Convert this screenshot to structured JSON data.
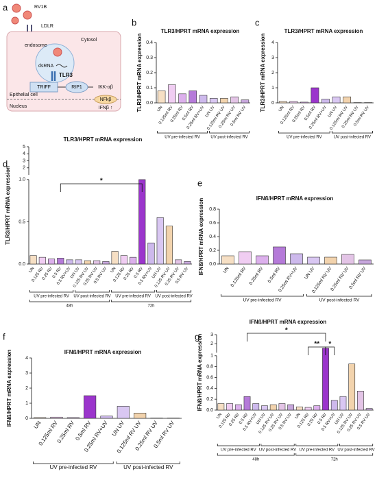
{
  "diagram": {
    "panel": "a",
    "virus": "RV1B",
    "receptor": "LDLR",
    "cytosol": "Cytosol",
    "endosome": "endosome",
    "dsrna": "dsRNA",
    "tlr3": "TLR3",
    "triff": "TRIFF",
    "rip1": "RIP1",
    "ikk": "IKK-αβ",
    "nfkb": "NFkβ",
    "ifnb": "IFNβ ↑",
    "cell": "Epithelial cell",
    "nucleus": "Nucleus"
  },
  "chart_data": [
    {
      "type": "bar",
      "panel": "b",
      "title": "TLR3/HPRT mRNA expression",
      "ylabel": "TLR3/HPRT mRNA expression",
      "categories": [
        "UN",
        "0.125ml RV",
        "0.25ml RV",
        "0.5ml RV",
        "0.25ml RV+UV",
        "UN UV",
        "0.125ml RV UV",
        "0.25ml RV UV",
        "0.5ml RV UV"
      ],
      "values": [
        0.08,
        0.12,
        0.06,
        0.08,
        0.05,
        0.03,
        0.03,
        0.04,
        0.02
      ],
      "colors": [
        "#f6dfc4",
        "#f0cdf2",
        "#dcb0ec",
        "#b57ad9",
        "#cdb9ec",
        "#d9c7f2",
        "#f2d3ad",
        "#e3c4e6",
        "#c7a7dc"
      ],
      "groups": [
        "UV pre-infected RV",
        "UV post-infected RV"
      ],
      "ylim": [
        0,
        0.4
      ],
      "yticks": [
        {
          "value": 0,
          "label": "0.0"
        },
        0.1,
        0.2,
        0.3,
        0.4
      ]
    },
    {
      "type": "bar",
      "panel": "c",
      "title": "TLR3/HPRT mRNA expression",
      "ylabel": "TLR3/HPRT mRNA expression",
      "categories": [
        "UN",
        "0.125ml RV",
        "0.25ml RV",
        "0.5ml RV",
        "0.25ml RV+UV",
        "UN UV",
        "0.125ml RV UV",
        "0.25ml RV UV",
        "0.5ml RV UV"
      ],
      "values": [
        0.1,
        0.1,
        0.05,
        1.0,
        0.25,
        0.4,
        0.4,
        0.02,
        0.02
      ],
      "colors": [
        "#f6dfc4",
        "#f0cdf2",
        "#dcb0ec",
        "#9b35cc",
        "#cdb9ec",
        "#d9c7f2",
        "#f2d3ad",
        "#e3c4e6",
        "#c7a7dc"
      ],
      "groups": [
        "UV pre-infected RV",
        "UV post-infected RV"
      ],
      "ylim": [
        0,
        4
      ],
      "yticks": [
        0,
        1,
        2,
        3,
        4
      ]
    },
    {
      "type": "bar",
      "panel": "d",
      "title": "TLR3/HPRT mRNA expression",
      "ylabel": "TLR3/HPRT mRNA expression",
      "categories": [
        "UN",
        "0.125 RV",
        "0.25 RV",
        "0.5 RV",
        "0.5 RV+UV",
        "UN UV",
        "0.125 RV UV",
        "0.25 RV UV",
        "0.5 RV UV",
        "UN",
        "0.125 RV",
        "0.25 RV",
        "0.5 RV",
        "0.5 RV+UV",
        "UN UV",
        "0.125 RV UV",
        "0.25 RV UV",
        "0.5 RV UV"
      ],
      "values": [
        0.1,
        0.08,
        0.06,
        0.07,
        0.05,
        0.05,
        0.04,
        0.04,
        0.03,
        0.15,
        0.1,
        0.08,
        1.0,
        0.25,
        0.55,
        0.45,
        0.05,
        0.03
      ],
      "colors": [
        "#f6dfc4",
        "#f0cdf2",
        "#dcb0ec",
        "#b57ad9",
        "#cdb9ec",
        "#d9c7f2",
        "#f2d3ad",
        "#e3c4e6",
        "#c7a7dc",
        "#f6dfc4",
        "#f0cdf2",
        "#dcb0ec",
        "#9b35cc",
        "#cdb9ec",
        "#d9c7f2",
        "#f2d3ad",
        "#e3c4e6",
        "#c7a7dc"
      ],
      "groups": [
        "UV pre-infected RV",
        "UV post-infected RV",
        "UV pre-infected RV",
        "UV post-infected RV"
      ],
      "periods": [
        "48h",
        "72h"
      ],
      "annotations": [
        "*"
      ],
      "ylim": [
        0,
        5
      ],
      "ybreak": 1,
      "yticks": [
        {
          "value": 0,
          "label": "0.0"
        },
        0.5,
        {
          "value": 1,
          "label": "1.0"
        },
        2,
        3,
        4,
        5
      ]
    },
    {
      "type": "bar",
      "panel": "e",
      "title": "IFNß/HPRT mRNA expression",
      "ylabel": "IFNß/HPRT mRNA expression",
      "categories": [
        "UN",
        "0.125ml RV",
        "0.25ml RV",
        "0.5ml RV",
        "0.25ml RV+UV",
        "UN UV",
        "0.125ml RV UV",
        "0.25ml RV UV",
        "0.5ml RV UV"
      ],
      "values": [
        0.12,
        0.18,
        0.12,
        0.25,
        0.15,
        0.1,
        0.1,
        0.14,
        0.06
      ],
      "colors": [
        "#f6dfc4",
        "#f0cdf2",
        "#dcb0ec",
        "#b57ad9",
        "#cdb9ec",
        "#d9c7f2",
        "#f2d3ad",
        "#e3c4e6",
        "#c7a7dc"
      ],
      "groups": [
        "UV pre-infected RV",
        "UV post-infected RV"
      ],
      "ylim": [
        0,
        0.8
      ],
      "yticks": [
        {
          "value": 0,
          "label": "0.0"
        },
        0.2,
        0.4,
        0.6,
        0.8
      ]
    },
    {
      "type": "bar",
      "panel": "f",
      "title": "IFNß/HPRT mRNA expression",
      "ylabel": "IFNß/HPRT mRNA expression",
      "categories": [
        "UN",
        "0.125ml RV",
        "0.25ml RV",
        "0.5ml RV",
        "0.25ml RV+UV",
        "UN UV",
        "0.125ml RV UV",
        "0.25ml RV UV",
        "0.5ml RV UV"
      ],
      "values": [
        0.05,
        0.08,
        0.05,
        1.5,
        0.15,
        0.8,
        0.35,
        0.02,
        0.02
      ],
      "colors": [
        "#f6dfc4",
        "#f0cdf2",
        "#dcb0ec",
        "#9b35cc",
        "#cdb9ec",
        "#d9c7f2",
        "#f2d3ad",
        "#e3c4e6",
        "#c7a7dc"
      ],
      "groups": [
        "UV pre-infected RV",
        "UV post-infected RV"
      ],
      "ylim": [
        0,
        4
      ],
      "yticks": [
        0,
        1,
        2,
        3,
        4
      ]
    },
    {
      "type": "bar",
      "panel": "g",
      "title": "IFNß/HPRT mRNA expression",
      "ylabel": "IFNß/HPRT mRNA expression",
      "categories": [
        "UN",
        "0.125 RV",
        "0.25 RV",
        "0.5 RV",
        "0.5 RV+UV",
        "UN UV",
        "0.125 RV UV",
        "0.25 RV UV",
        "0.5 RV UV",
        "UN",
        "0.125 RV",
        "0.25 RV",
        "0.5 RV",
        "0.5 RV+UV",
        "UN UV",
        "0.125 RV UV",
        "0.25 RV UV",
        "0.5 RV UV"
      ],
      "values": [
        0.12,
        0.12,
        0.1,
        0.25,
        0.12,
        0.08,
        0.1,
        0.12,
        0.1,
        0.06,
        0.05,
        0.08,
        1.5,
        0.18,
        0.25,
        0.85,
        0.35,
        0.03
      ],
      "colors": [
        "#f6dfc4",
        "#f0cdf2",
        "#dcb0ec",
        "#b57ad9",
        "#cdb9ec",
        "#d9c7f2",
        "#f2d3ad",
        "#e3c4e6",
        "#c7a7dc",
        "#f6dfc4",
        "#f0cdf2",
        "#dcb0ec",
        "#9b35cc",
        "#cdb9ec",
        "#d9c7f2",
        "#f2d3ad",
        "#e3c4e6",
        "#c7a7dc"
      ],
      "groups": [
        "UV pre-infected RV",
        "UV post-infected RV",
        "UV pre-infected RV",
        "UV post-infected RV"
      ],
      "periods": [
        "48h",
        "72h"
      ],
      "annotations": [
        "*",
        "**",
        "*"
      ],
      "ylim": [
        0,
        3
      ],
      "ybreak": 1,
      "yticks": [
        {
          "value": 0,
          "label": "0.0"
        },
        0.2,
        0.4,
        0.6,
        0.8,
        1,
        2,
        3
      ]
    }
  ]
}
